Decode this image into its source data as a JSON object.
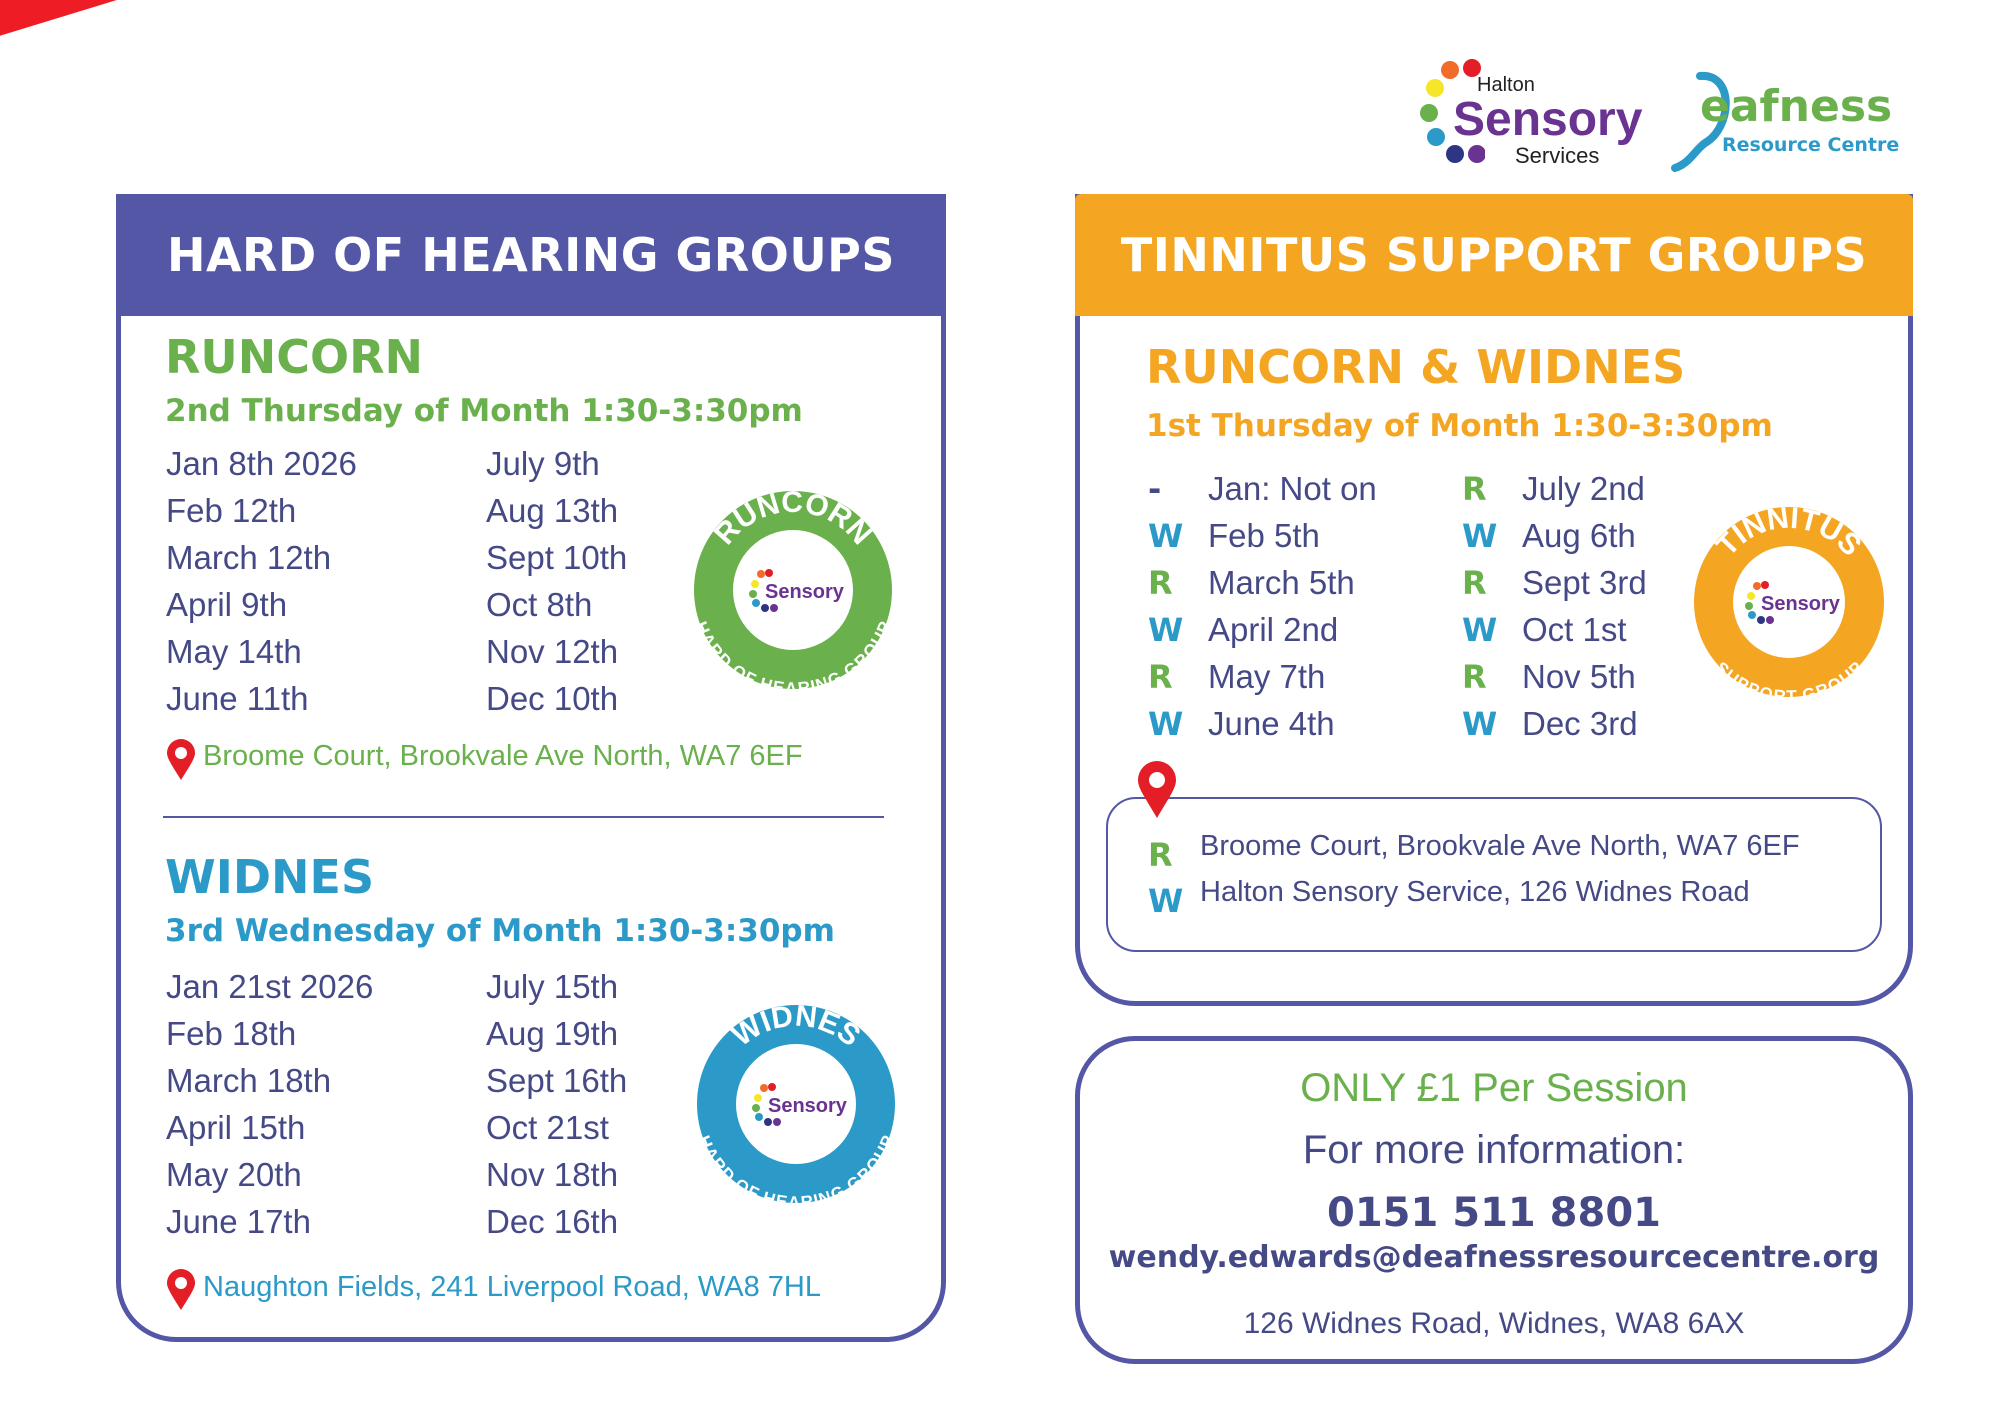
{
  "year": "2026",
  "logos": {
    "sensory": {
      "top": "Halton",
      "main": "Sensory",
      "bottom": "Services"
    },
    "deafness": {
      "main": "eafness",
      "sub": "Resource Centre"
    }
  },
  "colors": {
    "purple": "#5457a6",
    "orange": "#f4a623",
    "green": "#6ab04c",
    "blue": "#2b9ac8",
    "red": "#ee1c25"
  },
  "hoh": {
    "title": "HARD OF HEARING GROUPS",
    "runcorn": {
      "name": "RUNCORN",
      "schedule": "2nd Thursday of Month 1:30-3:30pm",
      "col1": [
        "Jan 8th 2026",
        "Feb 12th",
        "March 12th",
        "April 9th",
        "May 14th",
        "June 11th"
      ],
      "col2": [
        "July 9th",
        "Aug 13th",
        "Sept 10th",
        "Oct 8th",
        "Nov 12th",
        "Dec 10th"
      ],
      "address": "Broome Court, Brookvale Ave North, WA7 6EF",
      "badge": {
        "top": "RUNCORN",
        "bottom": "HARD OF HEARING GROUP"
      }
    },
    "widnes": {
      "name": "WIDNES",
      "schedule": "3rd Wednesday of Month 1:30-3:30pm",
      "col1": [
        "Jan 21st 2026",
        "Feb 18th",
        "March 18th",
        "April 15th",
        "May 20th",
        "June 17th"
      ],
      "col2": [
        "July 15th",
        "Aug 19th",
        "Sept 16th",
        "Oct 21st",
        "Nov 18th",
        "Dec 16th"
      ],
      "address": "Naughton Fields, 241 Liverpool Road, WA8 7HL",
      "badge": {
        "top": "WIDNES",
        "bottom": "HARD OF HEARING GROUP"
      }
    }
  },
  "tinnitus": {
    "title": "TINNITUS SUPPORT GROUPS",
    "name": "RUNCORN & WIDNES",
    "schedule": "1st Thursday of Month 1:30-3:30pm",
    "col1": [
      {
        "l": "-",
        "d": "Jan: Not on"
      },
      {
        "l": "W",
        "d": "Feb 5th"
      },
      {
        "l": "R",
        "d": "March 5th"
      },
      {
        "l": "W",
        "d": "April 2nd"
      },
      {
        "l": "R",
        "d": "May 7th"
      },
      {
        "l": "W",
        "d": "June 4th"
      }
    ],
    "col2": [
      {
        "l": "R",
        "d": "July 2nd"
      },
      {
        "l": "W",
        "d": "Aug 6th"
      },
      {
        "l": "R",
        "d": "Sept 3rd"
      },
      {
        "l": "W",
        "d": "Oct 1st"
      },
      {
        "l": "R",
        "d": "Nov 5th"
      },
      {
        "l": "W",
        "d": "Dec 3rd"
      }
    ],
    "badge": {
      "top": "TINNITUS",
      "bottom": "SUPPORT GROUP"
    },
    "venues": [
      {
        "l": "R",
        "a": "Broome Court, Brookvale Ave North, WA7 6EF"
      },
      {
        "l": "W",
        "a": "Halton Sensory Service, 126 Widnes Road"
      }
    ]
  },
  "info": {
    "price": "ONLY £1 Per Session",
    "more": "For more information:",
    "phone": "0151 511 8801",
    "email": "wendy.edwards@deafnessresourcecentre.org",
    "address": "126 Widnes Road, Widnes, WA8 6AX"
  }
}
